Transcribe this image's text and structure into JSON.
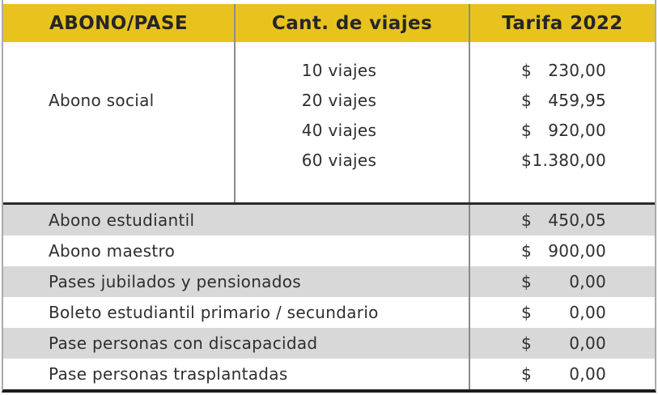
{
  "table": {
    "headers": [
      {
        "label": "ABONO/PASE"
      },
      {
        "label": "Cant. de viajes"
      },
      {
        "label": "Tarifa 2022"
      }
    ],
    "abono_social": {
      "label": "Abono social",
      "options": [
        {
          "trips": "10 viajes",
          "currency": "$",
          "amount": "230,00"
        },
        {
          "trips": "20 viajes",
          "currency": "$",
          "amount": "459,95"
        },
        {
          "trips": "40 viajes",
          "currency": "$",
          "amount": "920,00"
        },
        {
          "trips": "60 viajes",
          "currency": "$",
          "amount": "1.380,00"
        }
      ]
    },
    "rows": [
      {
        "label": "Abono estudiantil",
        "currency": "$",
        "amount": "450,05"
      },
      {
        "label": "Abono maestro",
        "currency": "$",
        "amount": "900,00"
      },
      {
        "label": "Pases jubilados y pensionados",
        "currency": "$",
        "amount": "0,00"
      },
      {
        "label": "Boleto estudiantil primario / secundario",
        "currency": "$",
        "amount": "0,00"
      },
      {
        "label": "Pase personas con discapacidad",
        "currency": "$",
        "amount": "0,00"
      },
      {
        "label": "Pase personas trasplantadas",
        "currency": "$",
        "amount": "0,00"
      }
    ]
  },
  "colors": {
    "header_bg": "#E8C31D",
    "row_alt_bg": "#D8D8D8",
    "divider_gray": "#8C8C8C",
    "section_border": "#2B2B2B",
    "bottom_border": "#1C1C1C",
    "text": "#2E2E2E"
  },
  "chart_data": {
    "type": "table",
    "title": "",
    "columns": [
      "ABONO/PASE",
      "Cant. de viajes",
      "Tarifa 2022"
    ],
    "rows": [
      [
        "Abono social",
        "10 viajes",
        "$ 230,00"
      ],
      [
        "Abono social",
        "20 viajes",
        "$ 459,95"
      ],
      [
        "Abono social",
        "40 viajes",
        "$ 920,00"
      ],
      [
        "Abono social",
        "60 viajes",
        "$ 1.380,00"
      ],
      [
        "Abono estudiantil",
        "",
        "$ 450,05"
      ],
      [
        "Abono maestro",
        "",
        "$ 900,00"
      ],
      [
        "Pases jubilados y pensionados",
        "",
        "$ 0,00"
      ],
      [
        "Boleto estudiantil primario / secundario",
        "",
        "$ 0,00"
      ],
      [
        "Pase personas con discapacidad",
        "",
        "$ 0,00"
      ],
      [
        "Pase personas trasplantadas",
        "",
        "$ 0,00"
      ]
    ],
    "layout": {
      "header_bg": "#E8C31D",
      "alternating_row_shading": true,
      "currency_column_decimal": "comma"
    }
  }
}
